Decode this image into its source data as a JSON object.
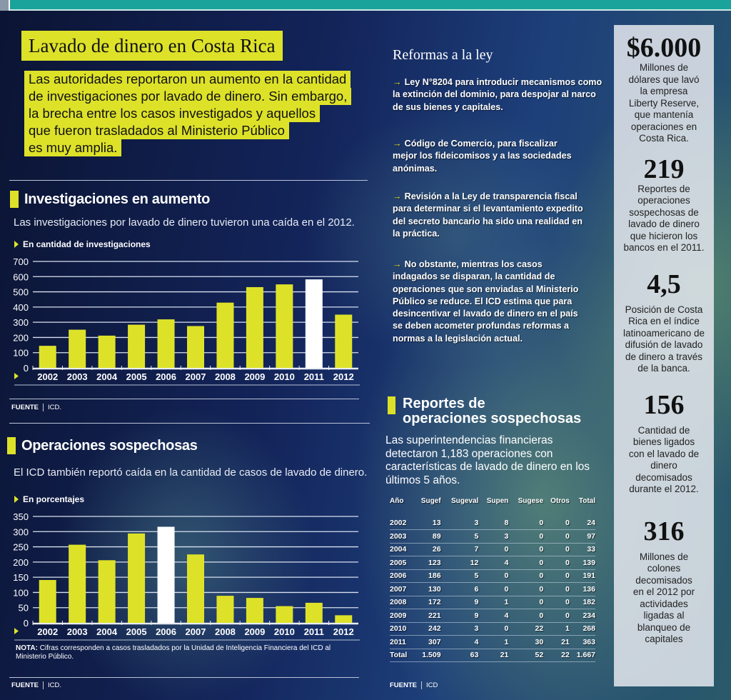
{
  "header": {
    "title": "Lavado de dinero en Costa Rica",
    "intro_lines": [
      "Las autoridades reportaron un aumento en la cantidad",
      "de investigaciones por lavado de dinero. Sin embargo,",
      "la brecha entre los casos investigados y aquellos",
      "que fueron trasladados al Ministerio Público",
      "es muy amplia."
    ]
  },
  "section1": {
    "title": "Investigaciones en aumento",
    "subtitle": "Las investigaciones por lavado de dinero tuvieron una caída en el 2012.",
    "unit": "En cantidad de investigaciones",
    "source_label": "FUENTE",
    "source": "ICD."
  },
  "section2": {
    "title": "Operaciones sospechosas",
    "subtitle": "El ICD también reportó caída en la cantidad de casos de lavado de dinero.",
    "unit": "En porcentajes",
    "note_label": "NOTA:",
    "note": "Cifras corresponden a casos trasladados por la Unidad de Inteligencia Financiera del ICD al Ministerio Público.",
    "source_label": "FUENTE",
    "source": "ICD."
  },
  "reforms": {
    "title": "Reformas a la ley",
    "items": [
      "Ley N°8204 para introducir mecanismos como la extinción del dominio, para despojar al narco de sus bienes y capitales.",
      "Código de Comercio, para fiscalizar mejor los fideicomisos y a las sociedades anónimas.",
      "Revisión a la Ley de transparencia fiscal para determinar si el levantamiento expedito del secreto bancario ha sido una realidad en la práctica.",
      "No obstante, mientras los casos indagados se disparan, la cantidad de operaciones que son enviadas al Ministerio Público se reduce. El ICD estima que para desincentivar el lavado de dinero en el país se deben acometer profundas reformas a normas a la legislación actual."
    ]
  },
  "reports": {
    "title_line1": "Reportes de",
    "title_line2": "operaciones sospechosas",
    "text": "Las superintendencias financieras detectaron 1,183 operaciones con características de lavado de dinero en los últimos 5 años.",
    "source_label": "FUENTE",
    "source": "ICD",
    "columns": [
      "Año",
      "Sugef",
      "Sugeval",
      "Supen",
      "Sugese",
      "Otros",
      "Total"
    ],
    "rows": [
      [
        "2002",
        "13",
        "3",
        "8",
        "0",
        "0",
        "24"
      ],
      [
        "2003",
        "89",
        "5",
        "3",
        "0",
        "0",
        "97"
      ],
      [
        "2004",
        "26",
        "7",
        "0",
        "0",
        "0",
        "33"
      ],
      [
        "2005",
        "123",
        "12",
        "4",
        "0",
        "0",
        "139"
      ],
      [
        "2006",
        "186",
        "5",
        "0",
        "0",
        "0",
        "191"
      ],
      [
        "2007",
        "130",
        "6",
        "0",
        "0",
        "0",
        "136"
      ],
      [
        "2008",
        "172",
        "9",
        "1",
        "0",
        "0",
        "182"
      ],
      [
        "2009",
        "221",
        "9",
        "4",
        "0",
        "0",
        "234"
      ],
      [
        "2010",
        "242",
        "3",
        "0",
        "22",
        "1",
        "268"
      ],
      [
        "2011",
        "307",
        "4",
        "1",
        "30",
        "21",
        "363"
      ],
      [
        "Total",
        "1.509",
        "63",
        "21",
        "52",
        "22",
        "1.667"
      ]
    ]
  },
  "facts": [
    {
      "value": "$6.000",
      "text": "Millones de dólares que lavó la empresa Liberty Reserve, que mantenía operaciones en Costa Rica."
    },
    {
      "value": "219",
      "text": "Reportes de operaciones sospechosas de lavado de dinero que hicieron los bancos en el 2011."
    },
    {
      "value": "4,5",
      "text": "Posición de Costa Rica en el índice latinoamericano de difusión de lavado de dinero a través de la banca."
    },
    {
      "value": "156",
      "text": "Cantidad de bienes ligados con el lavado de dinero decomisados durante el 2012."
    },
    {
      "value": "316",
      "text": "Millones de colones decomisados en el 2012 por actividades ligadas al blanqueo de capitales"
    }
  ],
  "colors": {
    "accent": "#dde229",
    "highlight_bar": "#ffffff",
    "top_bar": "#1aa39a"
  },
  "chart_data": [
    {
      "type": "bar",
      "ylabel": "En cantidad de investigaciones",
      "categories": [
        "2002",
        "2003",
        "2004",
        "2005",
        "2006",
        "2007",
        "2008",
        "2009",
        "2010",
        "2011",
        "2012"
      ],
      "values": [
        145,
        251,
        212,
        284,
        319,
        275,
        429,
        531,
        549,
        582,
        350
      ],
      "highlight": "2011",
      "ylim": [
        0,
        700
      ],
      "yticks": [
        0,
        100,
        200,
        300,
        400,
        500,
        600,
        700
      ],
      "grid": true
    },
    {
      "type": "bar",
      "ylabel": "En porcentajes",
      "categories": [
        "2002",
        "2003",
        "2004",
        "2005",
        "2006",
        "2007",
        "2008",
        "2009",
        "2010",
        "2011",
        "2012"
      ],
      "values": [
        141,
        257,
        206,
        294,
        316,
        225,
        89,
        82,
        55,
        66,
        25
      ],
      "highlight": "2006",
      "ylim": [
        0,
        350
      ],
      "yticks": [
        0,
        50,
        100,
        150,
        200,
        250,
        300,
        350
      ],
      "grid": true
    }
  ]
}
